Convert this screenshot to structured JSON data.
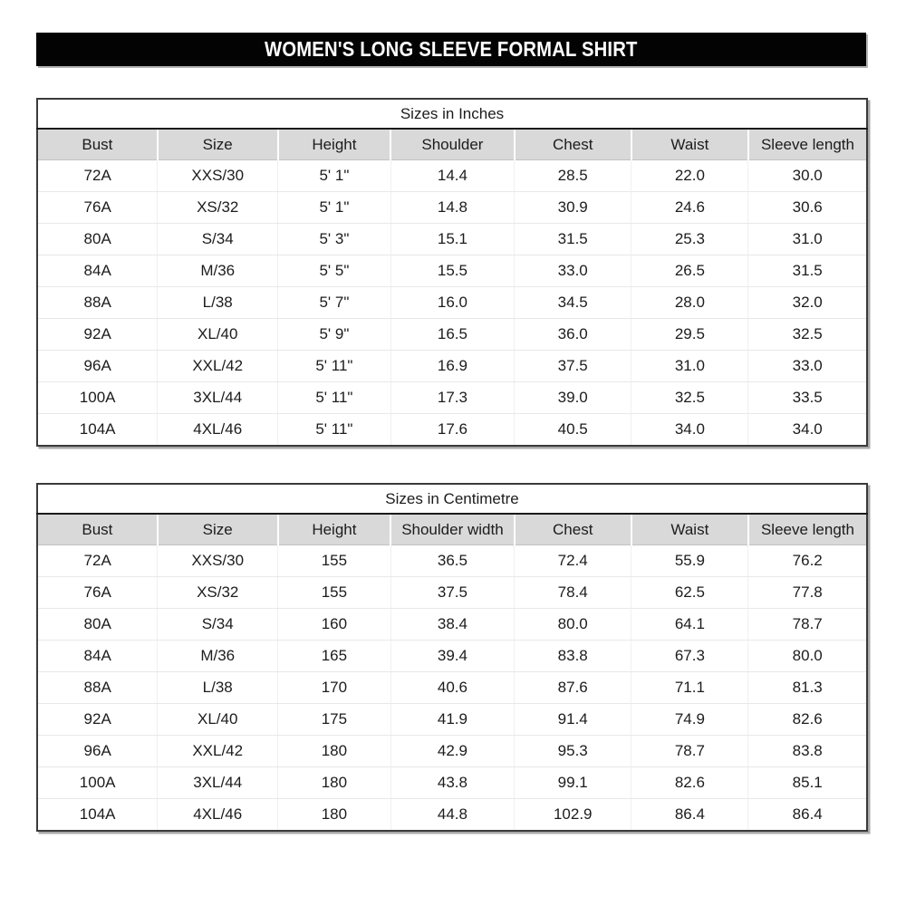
{
  "banner": {
    "title": "WOMEN'S LONG SLEEVE FORMAL SHIRT"
  },
  "tables": [
    {
      "title": "Sizes in Inches",
      "columns": [
        "Bust",
        "Size",
        "Height",
        "Shoulder",
        "Chest",
        "Waist",
        "Sleeve length"
      ],
      "rows": [
        [
          "72A",
          "XXS/30",
          "5' 1\"",
          "14.4",
          "28.5",
          "22.0",
          "30.0"
        ],
        [
          "76A",
          "XS/32",
          "5' 1\"",
          "14.8",
          "30.9",
          "24.6",
          "30.6"
        ],
        [
          "80A",
          "S/34",
          "5' 3\"",
          "15.1",
          "31.5",
          "25.3",
          "31.0"
        ],
        [
          "84A",
          "M/36",
          "5' 5\"",
          "15.5",
          "33.0",
          "26.5",
          "31.5"
        ],
        [
          "88A",
          "L/38",
          "5' 7\"",
          "16.0",
          "34.5",
          "28.0",
          "32.0"
        ],
        [
          "92A",
          "XL/40",
          "5' 9\"",
          "16.5",
          "36.0",
          "29.5",
          "32.5"
        ],
        [
          "96A",
          "XXL/42",
          "5' 11\"",
          "16.9",
          "37.5",
          "31.0",
          "33.0"
        ],
        [
          "100A",
          "3XL/44",
          "5' 11\"",
          "17.3",
          "39.0",
          "32.5",
          "33.5"
        ],
        [
          "104A",
          "4XL/46",
          "5' 11\"",
          "17.6",
          "40.5",
          "34.0",
          "34.0"
        ]
      ]
    },
    {
      "title": "Sizes in Centimetre",
      "columns": [
        "Bust",
        "Size",
        "Height",
        "Shoulder width",
        "Chest",
        "Waist",
        "Sleeve length"
      ],
      "rows": [
        [
          "72A",
          "XXS/30",
          "155",
          "36.5",
          "72.4",
          "55.9",
          "76.2"
        ],
        [
          "76A",
          "XS/32",
          "155",
          "37.5",
          "78.4",
          "62.5",
          "77.8"
        ],
        [
          "80A",
          "S/34",
          "160",
          "38.4",
          "80.0",
          "64.1",
          "78.7"
        ],
        [
          "84A",
          "M/36",
          "165",
          "39.4",
          "83.8",
          "67.3",
          "80.0"
        ],
        [
          "88A",
          "L/38",
          "170",
          "40.6",
          "87.6",
          "71.1",
          "81.3"
        ],
        [
          "92A",
          "XL/40",
          "175",
          "41.9",
          "91.4",
          "74.9",
          "82.6"
        ],
        [
          "96A",
          "XXL/42",
          "180",
          "42.9",
          "95.3",
          "78.7",
          "83.8"
        ],
        [
          "100A",
          "3XL/44",
          "180",
          "43.8",
          "99.1",
          "82.6",
          "85.1"
        ],
        [
          "104A",
          "4XL/46",
          "180",
          "44.8",
          "102.9",
          "86.4",
          "86.4"
        ]
      ]
    }
  ],
  "colors": {
    "banner_bg": "#030303",
    "banner_text": "#ffffff",
    "header_bg": "#d9d9d9",
    "table_border": "#3a3a3a",
    "shadow": "#a8a8a8"
  }
}
